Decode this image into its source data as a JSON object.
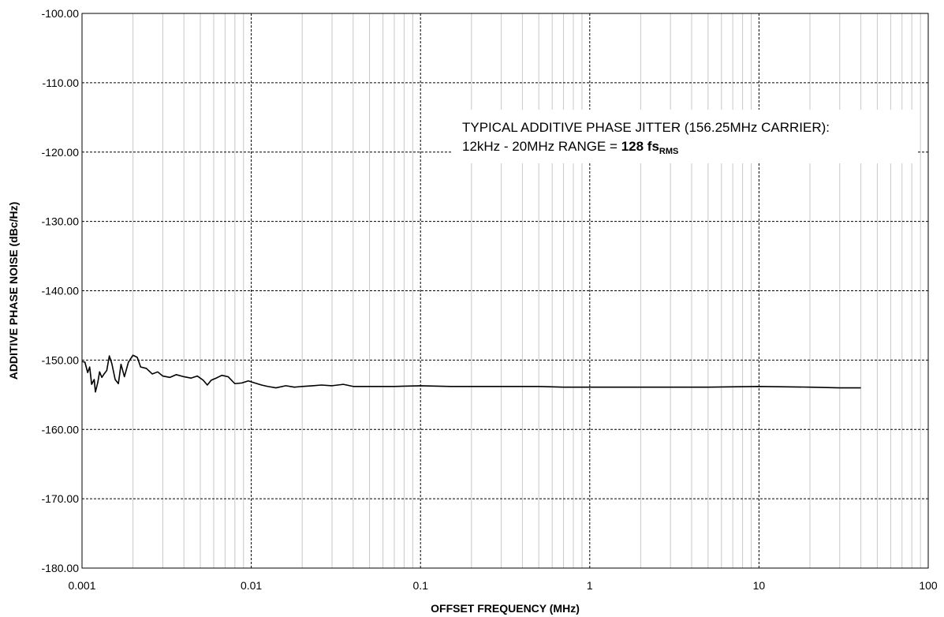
{
  "chart_data": {
    "type": "line",
    "xlabel": "OFFSET FREQUENCY (MHz)",
    "ylabel": "ADDITIVE PHASE NOISE (dBc/Hz)",
    "x_scale": "log",
    "xlim": [
      0.001,
      100
    ],
    "ylim": [
      -180,
      -100
    ],
    "x_ticks": [
      0.001,
      0.01,
      0.1,
      1,
      10,
      100
    ],
    "x_tick_labels": [
      "0.001",
      "0.01",
      "0.1",
      "1",
      "10",
      "100"
    ],
    "y_ticks": [
      -100,
      -110,
      -120,
      -130,
      -140,
      -150,
      -160,
      -170,
      -180
    ],
    "y_tick_labels": [
      "-100.00",
      "-110.00",
      "-120.00",
      "-130.00",
      "-140.00",
      "-150.00",
      "-160.00",
      "-170.00",
      "-180.00"
    ],
    "grid": true,
    "annotation": {
      "line1": "TYPICAL ADDITIVE PHASE JITTER (156.25MHz CARRIER):",
      "line2_prefix": "12kHz - 20MHz RANGE = ",
      "line2_value": "128 fs",
      "line2_subscript": "RMS"
    },
    "series": [
      {
        "color": "#000000",
        "x": [
          0.001,
          0.00104,
          0.00108,
          0.00111,
          0.00114,
          0.00118,
          0.0012,
          0.00124,
          0.00127,
          0.00131,
          0.00135,
          0.0014,
          0.00145,
          0.0015,
          0.00157,
          0.00164,
          0.0017,
          0.00178,
          0.00188,
          0.002,
          0.00212,
          0.00222,
          0.0024,
          0.0026,
          0.0028,
          0.003,
          0.0033,
          0.0036,
          0.004,
          0.0044,
          0.0048,
          0.0052,
          0.0055,
          0.0058,
          0.0062,
          0.0067,
          0.0073,
          0.008,
          0.0088,
          0.0096,
          0.0105,
          0.0115,
          0.0125,
          0.014,
          0.016,
          0.018,
          0.02,
          0.023,
          0.026,
          0.03,
          0.035,
          0.04,
          0.05,
          0.07,
          0.1,
          0.15,
          0.2,
          0.3,
          0.5,
          0.7,
          1,
          2,
          3,
          5,
          10,
          20,
          30,
          40
        ],
        "y": [
          -150.2,
          -150.3,
          -151.8,
          -151.0,
          -153.5,
          -152.8,
          -154.6,
          -153.2,
          -151.7,
          -152.5,
          -152.0,
          -151.5,
          -149.4,
          -150.5,
          -152.8,
          -153.4,
          -150.6,
          -152.4,
          -150.3,
          -149.3,
          -149.6,
          -151.0,
          -151.2,
          -152.0,
          -151.7,
          -152.3,
          -152.5,
          -152.1,
          -152.4,
          -152.6,
          -152.3,
          -152.9,
          -153.6,
          -152.9,
          -152.6,
          -152.2,
          -152.4,
          -153.4,
          -153.3,
          -153.0,
          -153.3,
          -153.6,
          -153.8,
          -154.0,
          -153.7,
          -153.9,
          -153.8,
          -153.7,
          -153.6,
          -153.7,
          -153.5,
          -153.8,
          -153.8,
          -153.8,
          -153.7,
          -153.8,
          -153.8,
          -153.8,
          -153.8,
          -153.9,
          -153.9,
          -153.9,
          -153.9,
          -153.9,
          -153.8,
          -153.9,
          -154.0,
          -154.0
        ]
      }
    ]
  }
}
